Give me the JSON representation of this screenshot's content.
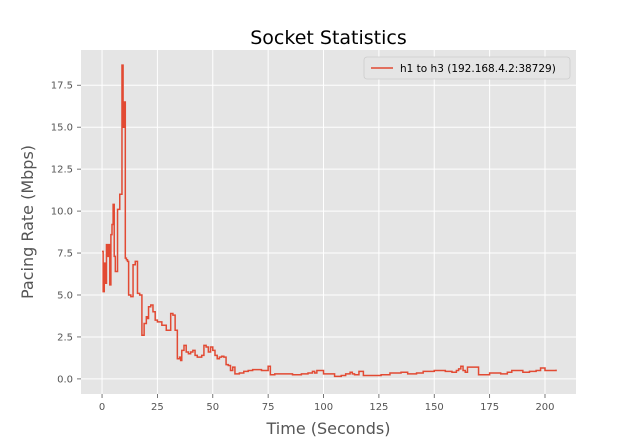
{
  "chart_data": {
    "type": "line",
    "title": "Socket Statistics",
    "xlabel": "Time (Seconds)",
    "ylabel": "Pacing Rate (Mbps)",
    "xlim": [
      -9.5,
      214
    ],
    "ylim": [
      -0.9,
      19.6
    ],
    "xticks": [
      0,
      25,
      50,
      75,
      100,
      125,
      150,
      175,
      200
    ],
    "yticks": [
      0.0,
      2.5,
      5.0,
      7.5,
      10.0,
      12.5,
      15.0,
      17.5
    ],
    "xtick_labels": [
      "0",
      "25",
      "50",
      "75",
      "100",
      "125",
      "150",
      "175",
      "200"
    ],
    "ytick_labels": [
      "0.0",
      "2.5",
      "5.0",
      "7.5",
      "10.0",
      "12.5",
      "15.0",
      "17.5"
    ],
    "grid": true,
    "style": "ggplot",
    "legend_position": "top-right",
    "series": [
      {
        "name": "h1 to h3 (192.168.4.2:38729)",
        "color": "#e24a33",
        "step": true,
        "x": [
          0,
          0.5,
          1,
          1.5,
          2,
          2.5,
          3,
          3.5,
          4,
          4.5,
          5,
          5.5,
          6,
          7,
          8,
          9,
          9.5,
          10,
          10.5,
          11,
          11.5,
          12,
          13,
          14,
          15,
          16,
          17,
          18,
          19,
          20,
          20.5,
          21,
          22,
          23,
          24,
          25,
          27,
          29,
          31,
          32,
          33,
          34,
          35,
          35.5,
          36,
          37,
          38,
          39,
          40,
          41,
          42,
          43,
          44,
          45,
          46,
          47,
          48,
          49,
          50,
          51,
          52,
          53,
          54,
          55,
          56,
          57,
          58,
          59,
          60,
          62,
          64,
          66,
          68,
          70,
          72,
          74,
          75,
          76,
          78,
          82,
          86,
          90,
          93,
          95,
          96,
          97,
          100,
          105,
          108,
          110,
          112,
          113,
          114,
          115,
          116,
          118,
          121,
          124,
          126,
          130,
          135,
          138,
          142,
          145,
          150,
          155,
          158,
          160,
          161,
          162,
          163,
          164,
          165,
          170,
          175,
          180,
          183,
          185,
          190,
          193,
          196,
          198,
          200,
          205
        ],
        "y": [
          7.6,
          5.2,
          6.9,
          5.7,
          8.0,
          7.3,
          8.0,
          5.6,
          8.6,
          9.2,
          10.4,
          7.3,
          6.4,
          10.1,
          11.0,
          18.7,
          15.0,
          16.5,
          7.2,
          7.1,
          7.0,
          5.0,
          4.9,
          6.8,
          7.0,
          5.1,
          5.0,
          2.6,
          3.3,
          3.7,
          3.6,
          4.3,
          4.4,
          4.0,
          3.5,
          3.4,
          3.2,
          2.9,
          3.9,
          3.8,
          2.9,
          1.2,
          1.3,
          1.1,
          1.7,
          2.0,
          1.6,
          1.5,
          1.6,
          1.7,
          1.4,
          1.3,
          1.3,
          1.4,
          2.0,
          1.9,
          1.6,
          1.9,
          1.7,
          1.4,
          1.2,
          1.3,
          1.35,
          1.3,
          0.85,
          0.8,
          0.5,
          0.7,
          0.3,
          0.35,
          0.45,
          0.5,
          0.55,
          0.55,
          0.5,
          0.5,
          0.75,
          0.25,
          0.3,
          0.3,
          0.25,
          0.3,
          0.35,
          0.45,
          0.35,
          0.5,
          0.3,
          0.15,
          0.2,
          0.3,
          0.4,
          0.3,
          0.25,
          0.25,
          0.45,
          0.2,
          0.2,
          0.2,
          0.25,
          0.35,
          0.4,
          0.3,
          0.35,
          0.45,
          0.5,
          0.45,
          0.4,
          0.5,
          0.6,
          0.75,
          0.5,
          0.4,
          0.7,
          0.25,
          0.35,
          0.3,
          0.4,
          0.5,
          0.4,
          0.45,
          0.5,
          0.65,
          0.5,
          0.55
        ]
      }
    ]
  }
}
